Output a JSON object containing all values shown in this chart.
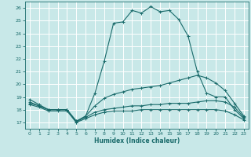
{
  "xlabel": "Humidex (Indice chaleur)",
  "xlim": [
    -0.5,
    23.5
  ],
  "ylim": [
    16.5,
    26.5
  ],
  "yticks": [
    17,
    18,
    19,
    20,
    21,
    22,
    23,
    24,
    25,
    26
  ],
  "xticks": [
    0,
    1,
    2,
    3,
    4,
    5,
    6,
    7,
    8,
    9,
    10,
    11,
    12,
    13,
    14,
    15,
    16,
    17,
    18,
    19,
    20,
    21,
    22,
    23
  ],
  "background_color": "#c8e8e8",
  "grid_color": "#ffffff",
  "line_color": "#1a6b6b",
  "curves": [
    {
      "x": [
        0,
        1,
        2,
        3,
        4,
        5,
        6,
        7,
        8,
        9,
        10,
        11,
        12,
        13,
        14,
        15,
        16,
        17,
        18,
        19,
        20,
        21,
        22,
        23
      ],
      "y": [
        18.8,
        18.4,
        18.0,
        18.0,
        18.0,
        17.0,
        17.5,
        19.3,
        21.8,
        24.8,
        24.9,
        25.8,
        25.6,
        26.1,
        25.7,
        25.8,
        25.1,
        23.8,
        21.0,
        19.3,
        19.0,
        19.0,
        18.0,
        17.3
      ]
    },
    {
      "x": [
        0,
        1,
        2,
        3,
        4,
        5,
        6,
        7,
        8,
        9,
        10,
        11,
        12,
        13,
        14,
        15,
        16,
        17,
        18,
        19,
        20,
        21,
        22,
        23
      ],
      "y": [
        18.6,
        18.3,
        18.0,
        18.0,
        18.0,
        17.1,
        17.5,
        18.3,
        18.9,
        19.2,
        19.4,
        19.6,
        19.7,
        19.8,
        19.9,
        20.1,
        20.3,
        20.5,
        20.7,
        20.5,
        20.1,
        19.5,
        18.5,
        17.5
      ]
    },
    {
      "x": [
        0,
        1,
        2,
        3,
        4,
        5,
        6,
        7,
        8,
        9,
        10,
        11,
        12,
        13,
        14,
        15,
        16,
        17,
        18,
        19,
        20,
        21,
        22,
        23
      ],
      "y": [
        18.5,
        18.3,
        18.0,
        18.0,
        18.0,
        17.1,
        17.4,
        17.8,
        18.0,
        18.1,
        18.2,
        18.3,
        18.3,
        18.4,
        18.4,
        18.5,
        18.5,
        18.5,
        18.6,
        18.7,
        18.7,
        18.6,
        18.2,
        17.4
      ]
    },
    {
      "x": [
        0,
        1,
        2,
        3,
        4,
        5,
        6,
        7,
        8,
        9,
        10,
        11,
        12,
        13,
        14,
        15,
        16,
        17,
        18,
        19,
        20,
        21,
        22,
        23
      ],
      "y": [
        18.4,
        18.2,
        17.9,
        17.9,
        17.9,
        17.0,
        17.3,
        17.6,
        17.8,
        17.9,
        17.9,
        17.9,
        18.0,
        18.0,
        18.0,
        18.0,
        18.0,
        18.0,
        18.0,
        18.0,
        18.0,
        17.9,
        17.6,
        17.2
      ]
    }
  ]
}
